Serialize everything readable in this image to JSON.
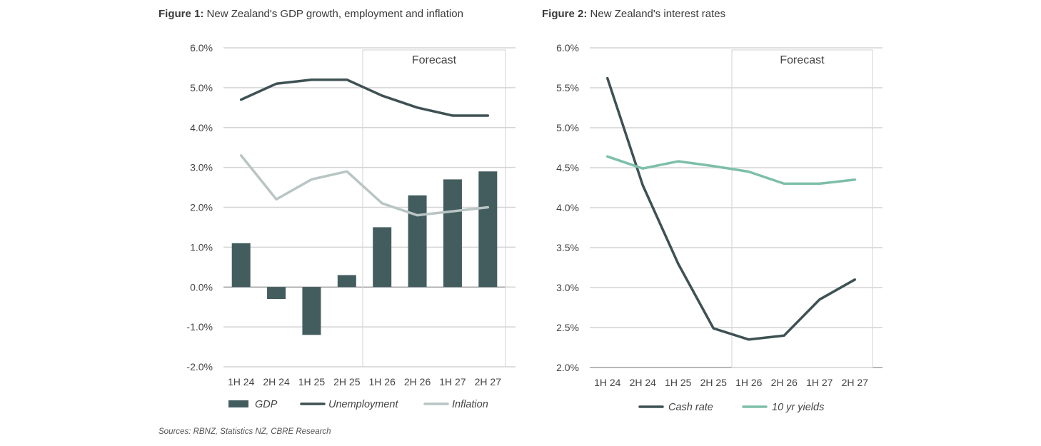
{
  "chart_data": [
    {
      "type": "bar+line",
      "title_bold": "Figure 1:",
      "title": "New Zealand's GDP growth, employment and inflation",
      "categories": [
        "1H 24",
        "2H 24",
        "1H 25",
        "2H 25",
        "1H 26",
        "2H 26",
        "1H 27",
        "2H 27"
      ],
      "ylim": [
        -2.0,
        6.0
      ],
      "yticks": [
        "-2.0%",
        "-1.0%",
        "0.0%",
        "1.0%",
        "2.0%",
        "3.0%",
        "4.0%",
        "5.0%",
        "6.0%"
      ],
      "grid": true,
      "annotation": "Forecast",
      "forecast_start": "1H 26",
      "legend_position": "bottom",
      "series": [
        {
          "name": "GDP",
          "kind": "bar",
          "color": "#435d5f",
          "values": [
            1.1,
            -0.3,
            -1.2,
            0.3,
            1.5,
            2.3,
            2.7,
            2.9
          ]
        },
        {
          "name": "Unemployment",
          "kind": "line",
          "color": "#3e5153",
          "values": [
            4.7,
            5.1,
            5.2,
            5.2,
            4.8,
            4.5,
            4.3,
            4.3
          ]
        },
        {
          "name": "Inflation",
          "kind": "line",
          "color": "#b9c5c4",
          "values": [
            3.3,
            2.2,
            2.7,
            2.9,
            2.1,
            1.8,
            1.9,
            2.0
          ]
        }
      ]
    },
    {
      "type": "line",
      "title_bold": "Figure 2:",
      "title": "New Zealand's interest rates",
      "categories": [
        "1H 24",
        "2H 24",
        "1H 25",
        "2H 25",
        "1H 26",
        "2H 26",
        "1H 27",
        "2H 27"
      ],
      "ylim": [
        2.0,
        6.0
      ],
      "yticks": [
        "2.0%",
        "2.5%",
        "3.0%",
        "3.5%",
        "4.0%",
        "4.5%",
        "5.0%",
        "5.5%",
        "6.0%"
      ],
      "grid": true,
      "annotation": "Forecast",
      "forecast_start": "1H 26",
      "legend_position": "bottom",
      "series": [
        {
          "name": "Cash rate",
          "kind": "line",
          "color": "#3e5153",
          "values": [
            5.62,
            4.28,
            3.3,
            2.49,
            2.35,
            2.4,
            2.85,
            3.1
          ]
        },
        {
          "name": "10 yr yields",
          "kind": "line",
          "color": "#7dbfa9",
          "values": [
            4.64,
            4.49,
            4.58,
            4.52,
            4.45,
            4.3,
            4.3,
            4.35
          ]
        }
      ]
    }
  ],
  "sources": "Sources: RBNZ, Statistics NZ, CBRE Research"
}
